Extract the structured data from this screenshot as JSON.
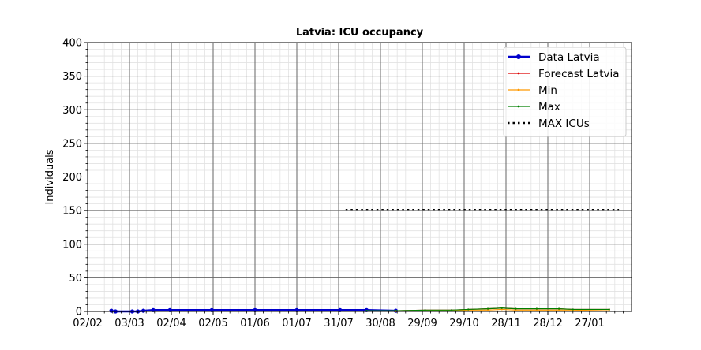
{
  "chart_data": {
    "type": "line",
    "title": "Latvia: ICU occupancy",
    "xlabel": "",
    "ylabel": "Individuals",
    "ylim": [
      0,
      400
    ],
    "yticks": [
      0,
      50,
      100,
      150,
      200,
      250,
      300,
      350,
      400
    ],
    "xlim": [
      "2020-02-02",
      "2021-02-26"
    ],
    "xticks": [
      {
        "date": "2020-02-02",
        "label": "02/02"
      },
      {
        "date": "2020-03-03",
        "label": "03/03"
      },
      {
        "date": "2020-04-02",
        "label": "02/04"
      },
      {
        "date": "2020-05-02",
        "label": "02/05"
      },
      {
        "date": "2020-06-01",
        "label": "01/06"
      },
      {
        "date": "2020-07-01",
        "label": "01/07"
      },
      {
        "date": "2020-07-31",
        "label": "31/07"
      },
      {
        "date": "2020-08-30",
        "label": "30/08"
      },
      {
        "date": "2020-09-29",
        "label": "29/09"
      },
      {
        "date": "2020-10-29",
        "label": "29/10"
      },
      {
        "date": "2020-11-28",
        "label": "28/11"
      },
      {
        "date": "2020-12-28",
        "label": "28/12"
      },
      {
        "date": "2021-01-27",
        "label": "27/01"
      }
    ],
    "grid": true,
    "legend": "top-right",
    "series": [
      {
        "name": "Data Latvia",
        "color": "#0000cc",
        "style": "solid-markers",
        "x": [
          "2020-02-19",
          "2020-02-22",
          "2020-03-05",
          "2020-03-09",
          "2020-03-13",
          "2020-03-20",
          "2020-04-01",
          "2020-05-01",
          "2020-06-01",
          "2020-07-01",
          "2020-08-01",
          "2020-08-20",
          "2020-09-10"
        ],
        "y": [
          1,
          0,
          0,
          0,
          1,
          2,
          2,
          2,
          2,
          2,
          2,
          2,
          1
        ]
      },
      {
        "name": "Forecast Latvia",
        "color": "#dd0000",
        "style": "thin-markers",
        "x": [
          "2020-09-10",
          "2020-10-01",
          "2020-10-20",
          "2020-11-01",
          "2020-11-15",
          "2020-11-25",
          "2020-12-05",
          "2020-12-20",
          "2021-01-05",
          "2021-01-15",
          "2021-02-10"
        ],
        "y": [
          1,
          2,
          2,
          3,
          4,
          5,
          4,
          4,
          4,
          3,
          3
        ]
      },
      {
        "name": "Min",
        "color": "#ff9900",
        "style": "thin-markers",
        "x": [
          "2020-09-10",
          "2020-10-01",
          "2020-10-20",
          "2020-11-01",
          "2020-11-15",
          "2020-11-25",
          "2020-12-05",
          "2020-12-20",
          "2021-01-05",
          "2021-01-15",
          "2021-02-10"
        ],
        "y": [
          0,
          1,
          1,
          2,
          2,
          3,
          2,
          2,
          2,
          2,
          1
        ]
      },
      {
        "name": "Max",
        "color": "#008000",
        "style": "thin-markers",
        "x": [
          "2020-08-20",
          "2020-09-10",
          "2020-10-01",
          "2020-10-20",
          "2020-11-01",
          "2020-11-15",
          "2020-11-25",
          "2020-12-05",
          "2020-12-20",
          "2021-01-05",
          "2021-01-15",
          "2021-02-10"
        ],
        "y": [
          1,
          1,
          2,
          2,
          3,
          4,
          5,
          4,
          4,
          4,
          3,
          3
        ]
      },
      {
        "name": "MAX ICUs",
        "color": "#000000",
        "style": "dotted",
        "x": [
          "2020-08-05",
          "2021-02-17"
        ],
        "y": [
          151,
          151
        ]
      }
    ]
  }
}
